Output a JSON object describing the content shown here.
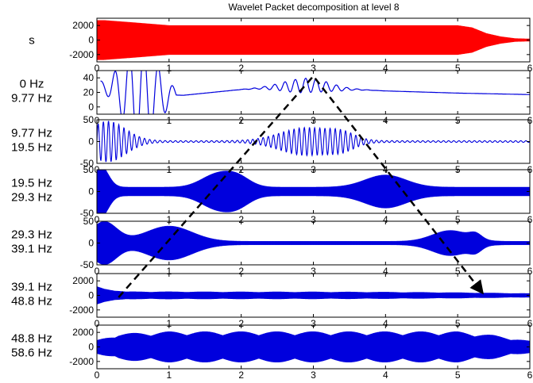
{
  "chart_data": {
    "type": "line",
    "title": "Wavelet Packet decomposition at level 8",
    "xlim": [
      0,
      6
    ],
    "x_ticks": [
      "0",
      "1",
      "2",
      "3",
      "4",
      "5",
      "6"
    ],
    "arrow": {
      "path_x": [
        0.3,
        3.0,
        5.35
      ],
      "path_y_labels": [
        "39.1 Hz - 48.8 Hz",
        "0 Hz - 9.77 Hz",
        "39.1 Hz - 48.8 Hz"
      ],
      "style": "dashed",
      "color": "#000000"
    },
    "panels": [
      {
        "id": "s",
        "label_lines": [
          "s"
        ],
        "ylim": [
          -3000,
          3000
        ],
        "yticks": [
          "2000",
          "0",
          "-2000"
        ],
        "ytick_values": [
          2000,
          0,
          -2000
        ],
        "color": "#ff0000",
        "fill": true,
        "envelope": {
          "x": [
            0,
            0.1,
            0.5,
            1,
            2,
            3,
            4,
            5,
            5.2,
            5.4,
            5.6,
            5.8,
            6
          ],
          "amp": [
            2700,
            2700,
            2400,
            2000,
            2000,
            2000,
            2000,
            2000,
            1700,
            900,
            450,
            200,
            150
          ]
        }
      },
      {
        "id": "b0",
        "label_lines": [
          "0 Hz",
          "9.77 Hz"
        ],
        "ylim": [
          -10,
          50
        ],
        "yticks": [
          "40",
          "20",
          "0"
        ],
        "ytick_values": [
          40,
          20,
          0
        ],
        "color": "#0000dd",
        "fill": false,
        "curve": {
          "x": [
            0.05,
            0.5,
            1.2,
            2,
            2.6,
            3,
            3.4,
            4,
            5,
            6
          ],
          "y": [
            30,
            18,
            16,
            24,
            28,
            30,
            25,
            22,
            19,
            17
          ]
        },
        "oscillation": {
          "center": 2.9,
          "width": 0.45,
          "amp": 10,
          "freq": 7
        }
      },
      {
        "id": "b1",
        "label_lines": [
          "9.77 Hz",
          "19.5 Hz"
        ],
        "ylim": [
          -50,
          50
        ],
        "yticks": [
          "50",
          "0",
          "-50"
        ],
        "ytick_values": [
          50,
          0,
          -50
        ],
        "color": "#0000dd",
        "fill": false,
        "bursts": [
          {
            "center": 0.15,
            "width": 0.35,
            "amp": 45,
            "freq": 14
          },
          {
            "center": 2.9,
            "width": 0.5,
            "amp": 30,
            "freq": 14
          },
          {
            "center": 3.4,
            "width": 0.25,
            "amp": 14,
            "freq": 14
          }
        ]
      },
      {
        "id": "b2",
        "label_lines": [
          "19.5 Hz",
          "29.3 Hz"
        ],
        "ylim": [
          -50,
          50
        ],
        "yticks": [
          "50",
          "0",
          "-50"
        ],
        "ytick_values": [
          50,
          0,
          -50
        ],
        "color": "#0000dd",
        "fill": true,
        "baseline": 10,
        "bursts": [
          {
            "center": 0.05,
            "width": 0.15,
            "amp": 50,
            "freq": 25
          },
          {
            "center": 1.65,
            "width": 0.3,
            "amp": 28,
            "freq": 25
          },
          {
            "center": 1.95,
            "width": 0.25,
            "amp": 22,
            "freq": 25
          },
          {
            "center": 4.0,
            "width": 0.4,
            "amp": 28,
            "freq": 25
          }
        ]
      },
      {
        "id": "b3",
        "label_lines": [
          "29.3 Hz",
          "39.1 Hz"
        ],
        "ylim": [
          -50,
          50
        ],
        "yticks": [
          "50",
          "0",
          "-50"
        ],
        "ytick_values": [
          50,
          0,
          -50
        ],
        "color": "#0000dd",
        "fill": true,
        "baseline": 4,
        "bursts": [
          {
            "center": 0.1,
            "width": 0.25,
            "amp": 45,
            "freq": 35
          },
          {
            "center": 1.0,
            "width": 0.45,
            "amp": 35,
            "freq": 35
          },
          {
            "center": 4.9,
            "width": 0.35,
            "amp": 25,
            "freq": 35
          },
          {
            "center": 5.25,
            "width": 0.12,
            "amp": 12,
            "freq": 35
          }
        ]
      },
      {
        "id": "b4",
        "label_lines": [
          "39.1 Hz",
          "48.8 Hz"
        ],
        "ylim": [
          -3000,
          3000
        ],
        "yticks": [
          "2000",
          "0",
          "-2000"
        ],
        "ytick_values": [
          2000,
          0,
          -2000
        ],
        "color": "#0000dd",
        "fill": true,
        "envelope": {
          "x": [
            0,
            0.1,
            0.4,
            1,
            2,
            3,
            4,
            5,
            6
          ],
          "amp": [
            1200,
            900,
            500,
            500,
            480,
            480,
            450,
            380,
            250
          ]
        },
        "modulation": 0.15
      },
      {
        "id": "b5",
        "label_lines": [
          "48.8 Hz",
          "58.6 Hz"
        ],
        "ylim": [
          -3000,
          3000
        ],
        "yticks": [
          "2000",
          "0",
          "-2000"
        ],
        "ytick_values": [
          2000,
          0,
          -2000
        ],
        "color": "#0000dd",
        "fill": true,
        "envelope": {
          "x": [
            0,
            0.3,
            1,
            2,
            3,
            4,
            5,
            5.5,
            6
          ],
          "amp": [
            900,
            1800,
            2100,
            2100,
            2100,
            2100,
            2100,
            1600,
            800
          ]
        },
        "modulation": 0.25
      }
    ]
  }
}
